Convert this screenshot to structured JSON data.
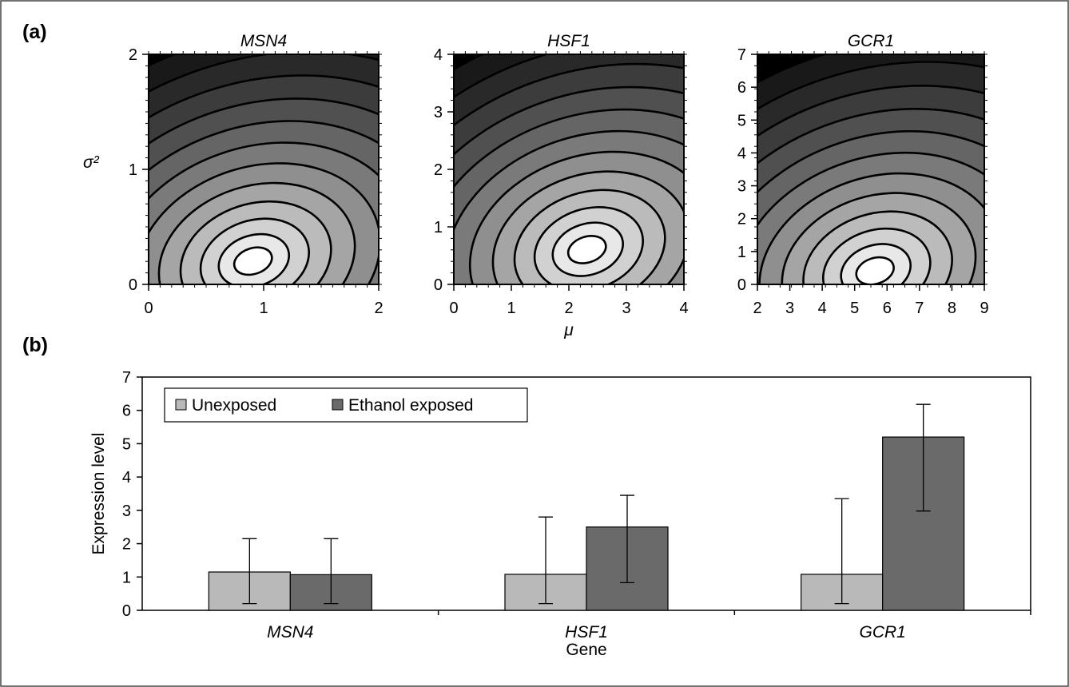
{
  "panel_labels": [
    "(a)",
    "(b)"
  ],
  "chart_data": [
    {
      "type": "heatmap",
      "title": "MSN4",
      "xlabel": "",
      "ylabel": "σ²",
      "xlim": [
        0,
        2
      ],
      "ylim": [
        0,
        2
      ],
      "xticks": [
        0,
        1,
        2
      ],
      "yticks": [
        0,
        1,
        2
      ],
      "xtick_labels": [
        "0",
        "1",
        "2"
      ],
      "ytick_labels": [
        "0",
        "1",
        "2"
      ],
      "contour_peak": {
        "mu": 0.9,
        "sigma2": 0.2
      },
      "contour_levels": 12
    },
    {
      "type": "heatmap",
      "title": "HSF1",
      "xlabel": "μ",
      "ylabel": "",
      "xlim": [
        0,
        4
      ],
      "ylim": [
        0,
        4
      ],
      "xticks": [
        0,
        1,
        2,
        3,
        4
      ],
      "yticks": [
        0,
        1,
        2,
        3,
        4
      ],
      "xtick_labels": [
        "0",
        "1",
        "2",
        "3",
        "4"
      ],
      "ytick_labels": [
        "0",
        "1",
        "2",
        "3",
        "4"
      ],
      "contour_peak": {
        "mu": 2.3,
        "sigma2": 0.6
      },
      "contour_levels": 12
    },
    {
      "type": "heatmap",
      "title": "GCR1",
      "xlabel": "",
      "ylabel": "",
      "xlim": [
        2,
        9
      ],
      "ylim": [
        0,
        7
      ],
      "xticks": [
        2,
        3,
        4,
        5,
        6,
        7,
        8,
        9
      ],
      "yticks": [
        0,
        1,
        2,
        3,
        4,
        5,
        6,
        7
      ],
      "xtick_labels": [
        "2",
        "3",
        "4",
        "5",
        "6",
        "7",
        "8",
        "9"
      ],
      "ytick_labels": [
        "0",
        "1",
        "2",
        "3",
        "4",
        "5",
        "6",
        "7"
      ],
      "contour_peak": {
        "mu": 5.6,
        "sigma2": 0.4
      },
      "contour_levels": 12
    },
    {
      "type": "bar",
      "title": "",
      "xlabel": "Gene",
      "ylabel": "Expression level",
      "ylim": [
        0,
        7
      ],
      "yticks": [
        0,
        1,
        2,
        3,
        4,
        5,
        6,
        7
      ],
      "ytick_labels": [
        "0",
        "1",
        "2",
        "3",
        "4",
        "5",
        "6",
        "7"
      ],
      "categories": [
        "MSN4",
        "HSF1",
        "GCR1"
      ],
      "legend_position": "top-left",
      "series": [
        {
          "name": "Unexposed",
          "color": "#b9b9b9",
          "values": [
            1.15,
            1.08,
            1.08
          ],
          "err_low": [
            0.2,
            0.2,
            0.2
          ],
          "err_high": [
            2.15,
            2.8,
            3.35
          ]
        },
        {
          "name": "Ethanol exposed",
          "color": "#6a6a6a",
          "values": [
            1.07,
            2.5,
            5.2
          ],
          "err_low": [
            0.2,
            0.83,
            2.98
          ],
          "err_high": [
            2.15,
            3.45,
            6.18
          ]
        }
      ]
    }
  ]
}
